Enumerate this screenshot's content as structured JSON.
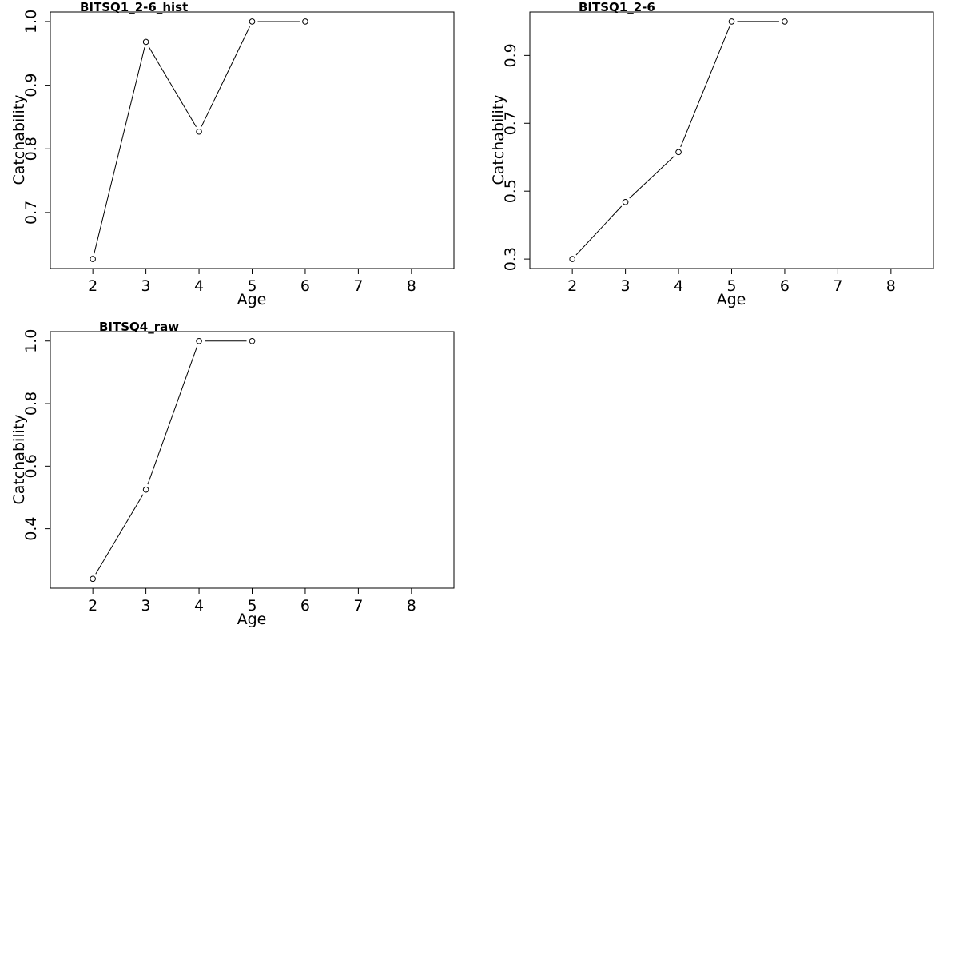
{
  "chart_data": [
    {
      "type": "line",
      "title": "BITSQ1_2-6_hist",
      "xlabel": "Age",
      "ylabel": "Catchability",
      "xlim": [
        1.2,
        8.8
      ],
      "ylim": [
        0.612,
        1.015
      ],
      "x_ticks": [
        "2",
        "3",
        "4",
        "5",
        "6",
        "7",
        "8"
      ],
      "y_ticks": [
        "0.7",
        "0.8",
        "0.9",
        "1.0"
      ],
      "x": [
        2,
        3,
        4,
        5,
        6
      ],
      "values": [
        0.627,
        0.968,
        0.827,
        1.0,
        1.0
      ],
      "marker": "open-circle",
      "grid": false
    },
    {
      "type": "line",
      "title": "BITSQ1_2-6",
      "xlabel": "Age",
      "ylabel": "Catchability",
      "xlim": [
        1.2,
        8.8
      ],
      "ylim": [
        0.272,
        1.028
      ],
      "x_ticks": [
        "2",
        "3",
        "4",
        "5",
        "6",
        "7",
        "8"
      ],
      "y_ticks": [
        "0.3",
        "0.5",
        "0.7",
        "0.9"
      ],
      "x": [
        2,
        3,
        4,
        5,
        6
      ],
      "values": [
        0.3,
        0.468,
        0.615,
        1.0,
        1.0
      ],
      "marker": "open-circle",
      "grid": false
    },
    {
      "type": "line",
      "title": "BITSQ4_raw",
      "xlabel": "Age",
      "ylabel": "Catchability",
      "xlim": [
        1.2,
        8.8
      ],
      "ylim": [
        0.21,
        1.03
      ],
      "x_ticks": [
        "2",
        "3",
        "4",
        "5",
        "6",
        "7",
        "8"
      ],
      "y_ticks": [
        "0.4",
        "0.6",
        "0.8",
        "1.0"
      ],
      "x": [
        2,
        3,
        4,
        5
      ],
      "values": [
        0.24,
        0.525,
        1.0,
        1.0
      ],
      "marker": "open-circle",
      "grid": false
    }
  ]
}
